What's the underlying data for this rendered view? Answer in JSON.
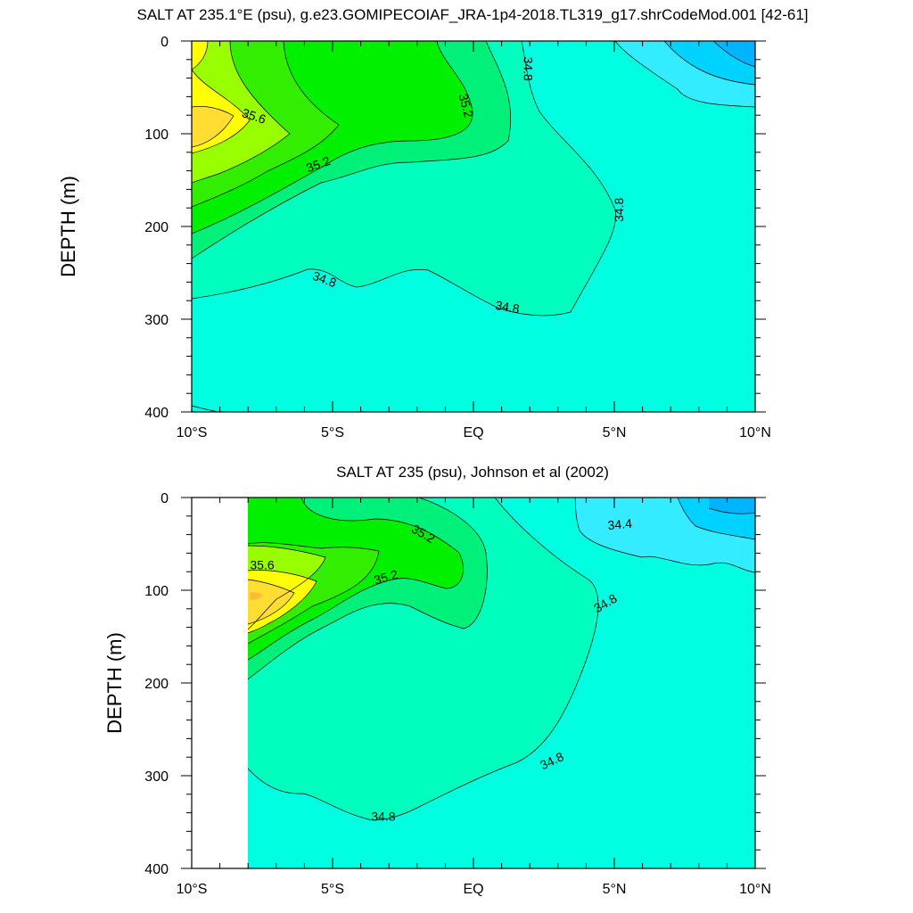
{
  "chart_data": [
    {
      "type": "contour",
      "title": "SALT AT 235.1°E (psu), g.e23.GOMIPECOIAF_JRA-1p4-2018.TL319_g17.shrCodeMod.001 [42-61]",
      "xlabel": "",
      "ylabel": "DEPTH (m)",
      "xlim": [
        -10,
        10
      ],
      "ylim": [
        400,
        0
      ],
      "xticks": [
        {
          "value": -10,
          "label": "10°S"
        },
        {
          "value": -5,
          "label": "5°S"
        },
        {
          "value": 0,
          "label": "EQ"
        },
        {
          "value": 5,
          "label": "5°N"
        },
        {
          "value": 10,
          "label": "10°N"
        }
      ],
      "yticks": [
        {
          "value": 0,
          "label": "0"
        },
        {
          "value": 100,
          "label": "100"
        },
        {
          "value": 200,
          "label": "200"
        },
        {
          "value": 300,
          "label": "300"
        },
        {
          "value": 400,
          "label": "400"
        }
      ],
      "levels": [
        {
          "value": 34.0,
          "color": "#00b4ff"
        },
        {
          "value": 34.2,
          "color": "#00d2ff"
        },
        {
          "value": 34.4,
          "color": "#33ecff"
        },
        {
          "value": 34.6,
          "color": "#00ffee"
        },
        {
          "value": 34.8,
          "color": "#00ffbe"
        },
        {
          "value": 35.0,
          "color": "#00f07a"
        },
        {
          "value": 35.2,
          "color": "#00f000"
        },
        {
          "value": 35.4,
          "color": "#33ee00"
        },
        {
          "value": 35.6,
          "color": "#99ff00"
        },
        {
          "value": 35.8,
          "color": "#ffff00"
        },
        {
          "value": 36.0,
          "color": "#ffdd33"
        },
        {
          "value": 36.2,
          "color": "#ffbb33"
        }
      ],
      "contour_labels": [
        {
          "text": "35.6",
          "x": -7.8,
          "y": 82,
          "rotate": 18
        },
        {
          "text": "35.2",
          "x": -5.5,
          "y": 134,
          "rotate": -20
        },
        {
          "text": "35.2",
          "x": -0.3,
          "y": 70,
          "rotate": 75
        },
        {
          "text": "34.8",
          "x": 1.9,
          "y": 30,
          "rotate": 90
        },
        {
          "text": "34.8",
          "x": 5.2,
          "y": 182,
          "rotate": -90
        },
        {
          "text": "34.8",
          "x": -5.3,
          "y": 258,
          "rotate": 20
        },
        {
          "text": "34.8",
          "x": 1.2,
          "y": 288,
          "rotate": 10
        }
      ]
    },
    {
      "type": "contour",
      "title": "SALT AT 235 (psu), Johnson et al (2002)",
      "xlabel": "",
      "ylabel": "DEPTH (m)",
      "xlim": [
        -10,
        10
      ],
      "ylim": [
        400,
        0
      ],
      "xticks": [
        {
          "value": -10,
          "label": "10°S"
        },
        {
          "value": -5,
          "label": "5°S"
        },
        {
          "value": 0,
          "label": "EQ"
        },
        {
          "value": 5,
          "label": "5°N"
        },
        {
          "value": 10,
          "label": "10°N"
        }
      ],
      "yticks": [
        {
          "value": 0,
          "label": "0"
        },
        {
          "value": 100,
          "label": "100"
        },
        {
          "value": 200,
          "label": "200"
        },
        {
          "value": 300,
          "label": "300"
        },
        {
          "value": 400,
          "label": "400"
        }
      ],
      "data_xrange": [
        -8,
        10
      ],
      "contour_labels": [
        {
          "text": "35.6",
          "x": -7.5,
          "y": 74,
          "rotate": 0
        },
        {
          "text": "35.2",
          "x": -3.1,
          "y": 87,
          "rotate": -15
        },
        {
          "text": "35.2",
          "x": -1.8,
          "y": 40,
          "rotate": 30
        },
        {
          "text": "34.4",
          "x": 5.2,
          "y": 30,
          "rotate": -5
        },
        {
          "text": "34.8",
          "x": 4.7,
          "y": 115,
          "rotate": -30
        },
        {
          "text": "34.8",
          "x": 2.8,
          "y": 285,
          "rotate": -25
        },
        {
          "text": "34.8",
          "x": -3.2,
          "y": 345,
          "rotate": 0
        }
      ]
    }
  ]
}
